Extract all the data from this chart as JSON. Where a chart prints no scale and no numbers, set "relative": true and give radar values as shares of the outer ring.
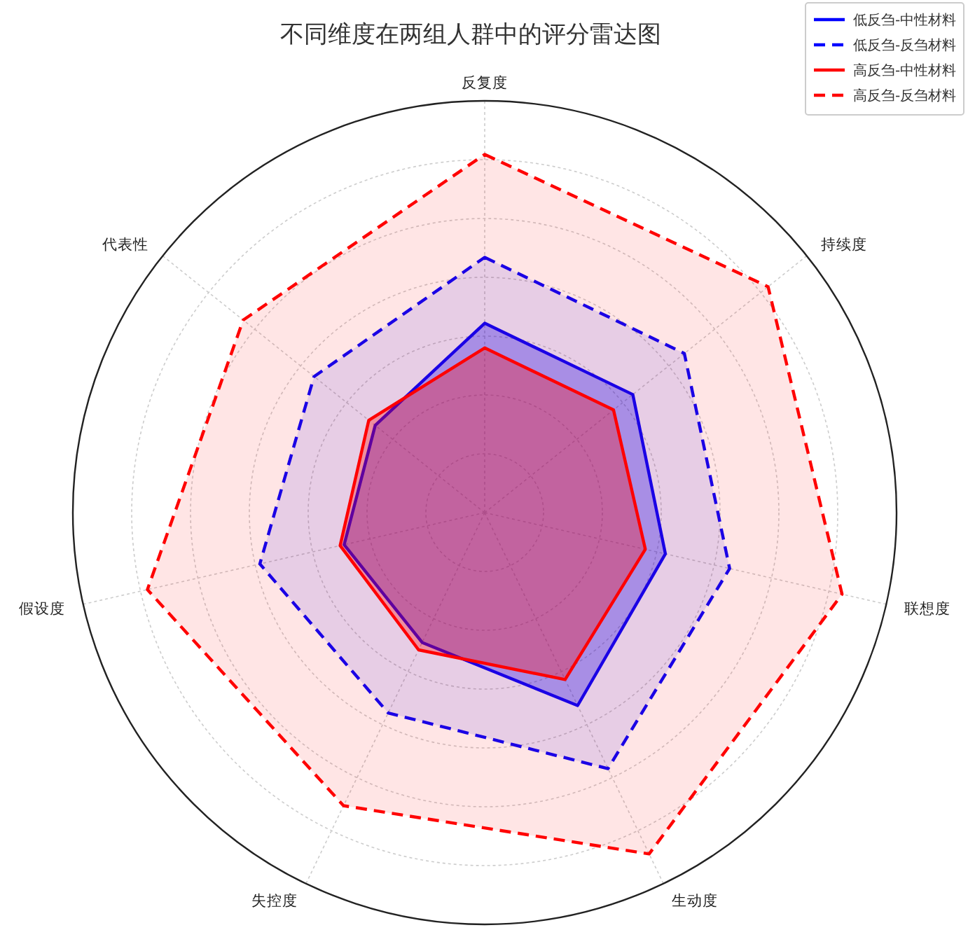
{
  "chart_data": {
    "type": "radar",
    "title": "不同维度在两组人群中的评分雷达图",
    "relative": true,
    "grid": true,
    "legend": "top right",
    "categories": [
      "反复度",
      "持续度",
      "联想度",
      "生动度",
      "失控度",
      "假设度",
      "代表性"
    ],
    "series": [
      {
        "name": "低反刍-中性材料",
        "color": "#0000ff",
        "line_style": "solid",
        "values": [
          0.46,
          0.46,
          0.45,
          0.52,
          0.35,
          0.35,
          0.34
        ]
      },
      {
        "name": "低反刍-反刍材料",
        "color": "#0000ff",
        "line_style": "dashed",
        "values": [
          0.62,
          0.62,
          0.61,
          0.69,
          0.54,
          0.56,
          0.53
        ]
      },
      {
        "name": "高反刍-中性材料",
        "color": "#ff0000",
        "line_style": "solid",
        "values": [
          0.4,
          0.4,
          0.4,
          0.45,
          0.37,
          0.36,
          0.36
        ]
      },
      {
        "name": "高反刍-反刍材料",
        "color": "#ff0000",
        "line_style": "dashed",
        "values": [
          0.87,
          0.88,
          0.89,
          0.92,
          0.79,
          0.84,
          0.75
        ]
      }
    ]
  }
}
